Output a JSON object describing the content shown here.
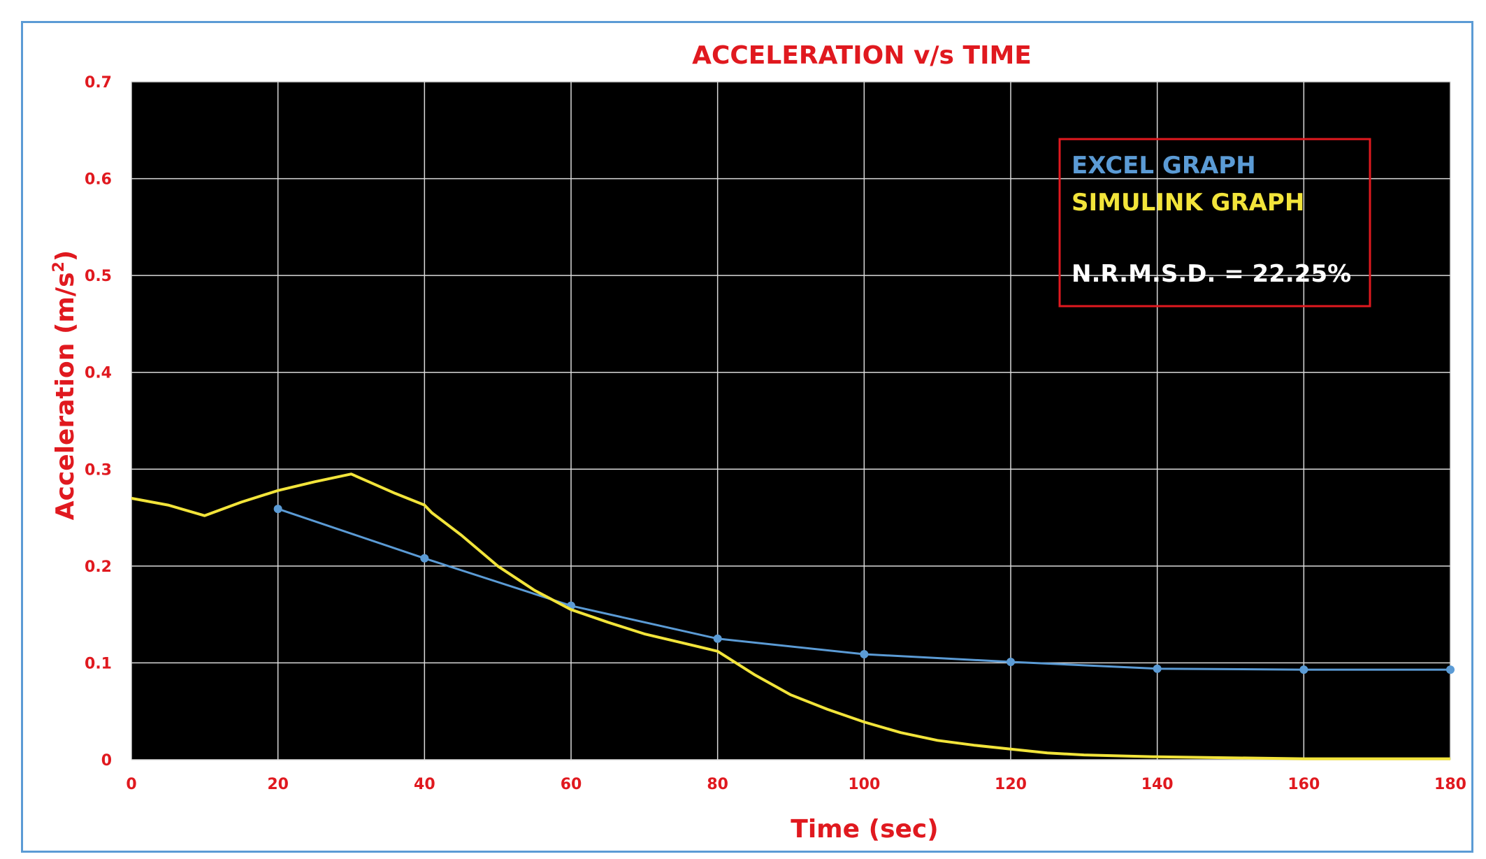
{
  "chart_data": {
    "type": "line",
    "title": "ACCELERATION v/s TIME",
    "xlabel": "Time (sec)",
    "ylabel": "Acceleration (m/s²)",
    "ylabel_base": "Acceleration (m/s",
    "ylabel_sup": "2",
    "ylabel_end": ")",
    "xlim": [
      0,
      180
    ],
    "ylim": [
      0,
      0.7
    ],
    "x_ticks": [
      "0",
      "20",
      "40",
      "60",
      "80",
      "100",
      "120",
      "140",
      "160",
      "180"
    ],
    "y_ticks": [
      "0",
      "0.1",
      "0.2",
      "0.3",
      "0.4",
      "0.5",
      "0.6",
      "0.7"
    ],
    "grid": true,
    "legend_position": "top-right",
    "series": [
      {
        "name": "EXCEL GRAPH",
        "color": "#5b9bd5",
        "markers": true,
        "x": [
          20,
          40,
          60,
          80,
          100,
          120,
          140,
          160,
          180
        ],
        "y": [
          0.259,
          0.208,
          0.159,
          0.125,
          0.109,
          0.101,
          0.094,
          0.093,
          0.093
        ]
      },
      {
        "name": "SIMULINK GRAPH",
        "color": "#f2e43a",
        "markers": false,
        "x": [
          0,
          5,
          10,
          15,
          20,
          25,
          30,
          33,
          36,
          40,
          41,
          45,
          50,
          55,
          60,
          65,
          70,
          75,
          80,
          85,
          90,
          95,
          100,
          105,
          110,
          115,
          120,
          125,
          130,
          135,
          140,
          150,
          160,
          170,
          180
        ],
        "y": [
          0.27,
          0.263,
          0.252,
          0.266,
          0.278,
          0.287,
          0.295,
          0.285,
          0.275,
          0.263,
          0.255,
          0.232,
          0.2,
          0.175,
          0.155,
          0.142,
          0.13,
          0.121,
          0.112,
          0.088,
          0.067,
          0.052,
          0.039,
          0.028,
          0.02,
          0.015,
          0.011,
          0.007,
          0.005,
          0.004,
          0.003,
          0.002,
          0.001,
          0.001,
          0.001
        ]
      }
    ],
    "annotation": "N.R.M.S.D. = 22.25%"
  },
  "colors": {
    "text_red": "#e0191f",
    "plot_bg": "#000000",
    "grid": "#d9d9d9",
    "legend_border": "#e0191f",
    "annotation_text": "#ffffff"
  }
}
